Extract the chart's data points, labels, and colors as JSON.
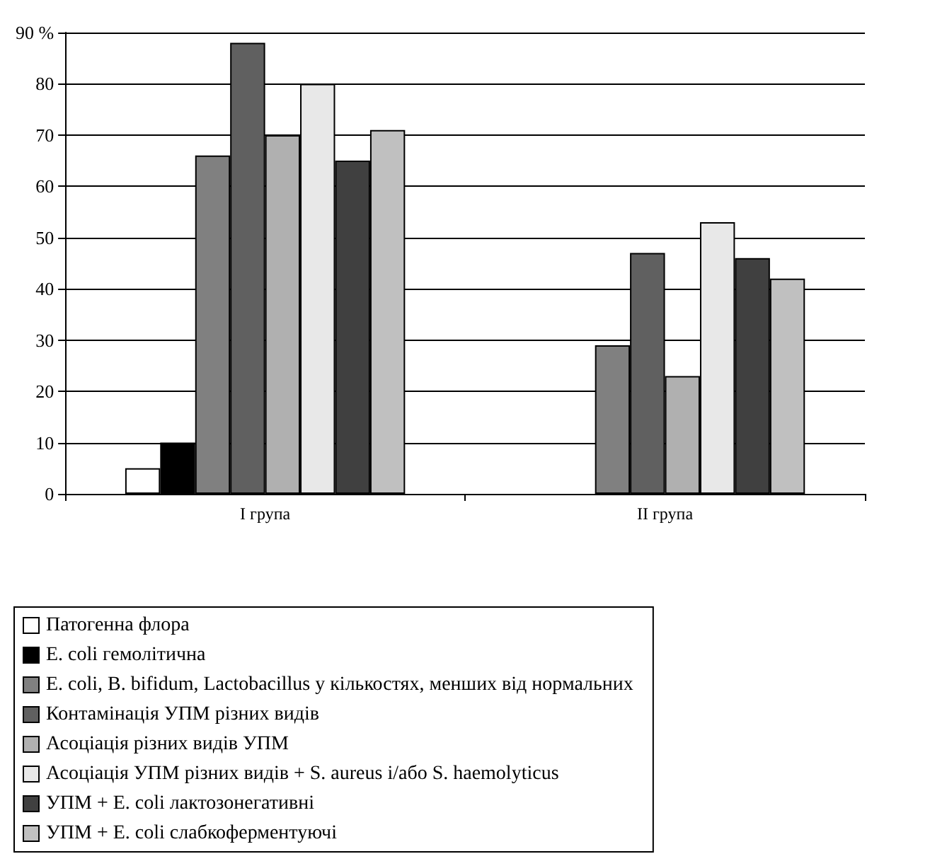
{
  "chart_data": {
    "type": "bar",
    "categories": [
      "I група",
      "II група"
    ],
    "series": [
      {
        "name": "Патогенна флора",
        "color": "#ffffff",
        "values": [
          5,
          0
        ]
      },
      {
        "name": "E. coli гемолітична",
        "color": "#000000",
        "values": [
          10,
          0
        ]
      },
      {
        "name": "E. coli, B. bifidum, Lactobacillus у кількостях, менших від нормальних",
        "color": "#808080",
        "values": [
          66,
          29
        ]
      },
      {
        "name": "Контамінація УПМ різних видів",
        "color": "#606060",
        "values": [
          88,
          47
        ]
      },
      {
        "name": "Асоціація різних видів УПМ",
        "color": "#b0b0b0",
        "values": [
          70,
          23
        ]
      },
      {
        "name": "Асоціація УПМ різних видів + S. aureus і/або S. haemolyticus",
        "color": "#e8e8e8",
        "values": [
          80,
          53
        ]
      },
      {
        "name": "УПМ + E. coli лактозонегативні",
        "color": "#404040",
        "values": [
          65,
          46
        ]
      },
      {
        "name": "УПМ + E. coli слабкоферментуючі",
        "color": "#c0c0c0",
        "values": [
          71,
          42
        ]
      }
    ],
    "ylim": [
      0,
      90
    ],
    "yticks": [
      0,
      10,
      20,
      30,
      40,
      50,
      60,
      70,
      80,
      {
        "value": 90,
        "label": "90 %"
      }
    ],
    "grid": "y",
    "legend": "bottom"
  }
}
